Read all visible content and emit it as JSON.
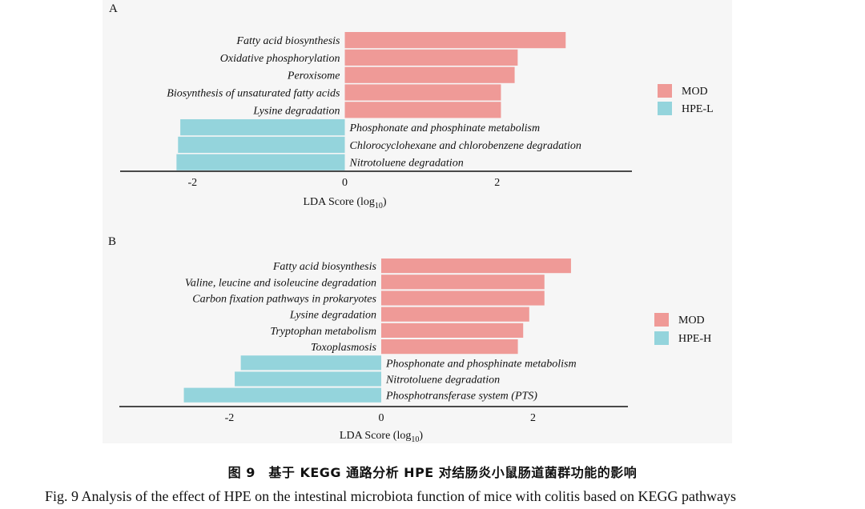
{
  "captions": {
    "cn": "图 9　基于 KEGG 通路分析 HPE 对结肠炎小鼠肠道菌群功能的影响",
    "en_fig": "Fig. 9",
    "en_text": "Analysis of the effect of HPE on the intestinal microbiota function of mice with colitis based on KEGG pathways"
  },
  "colors": {
    "pos": "#ef9a97",
    "neg": "#94d4dc",
    "panel_bg": "#f6f6f6",
    "axis": "#111111"
  },
  "chart_data": [
    {
      "type": "bar",
      "orientation": "horizontal",
      "panel": "A",
      "categories": [
        "Fatty acid biosynthesis",
        "Oxidative phosphorylation",
        "Peroxisome",
        "Biosynthesis of unsaturated fatty acids",
        "Lysine degradation",
        "Phosphonate and phosphinate metabolism",
        "Chlorocyclohexane and chlorobenzene degradation",
        "Nitrotoluene degradation"
      ],
      "values": [
        2.9,
        2.27,
        2.23,
        2.05,
        2.05,
        -2.16,
        -2.19,
        -2.21
      ],
      "groups": [
        "MOD",
        "MOD",
        "MOD",
        "MOD",
        "MOD",
        "HPE-L",
        "HPE-L",
        "HPE-L"
      ],
      "legend": [
        {
          "name": "MOD",
          "color": "#ef9a97"
        },
        {
          "name": "HPE-L",
          "color": "#94d4dc"
        }
      ],
      "legend_position": "right",
      "xlabel": "LDA Score (log",
      "xlabel_sub": "10",
      "xlabel_end": ")",
      "xlim": [
        -2.95,
        3.77
      ],
      "xticks": [
        -2,
        0,
        2
      ],
      "grid": false
    },
    {
      "type": "bar",
      "orientation": "horizontal",
      "panel": "B",
      "categories": [
        "Fatty acid biosynthesis",
        "Valine, leucine and isoleucine degradation",
        "Carbon fixation pathways in prokaryotes",
        "Lysine degradation",
        "Tryptophan metabolism",
        "Toxoplasmosis",
        "Phosphonate and phosphinate metabolism",
        "Nitrotoluene degradation",
        "Phosphotransferase system (PTS)"
      ],
      "values": [
        2.5,
        2.15,
        2.15,
        1.95,
        1.87,
        1.8,
        -1.85,
        -1.93,
        -2.6
      ],
      "groups": [
        "MOD",
        "MOD",
        "MOD",
        "MOD",
        "MOD",
        "MOD",
        "HPE-H",
        "HPE-H",
        "HPE-H"
      ],
      "legend": [
        {
          "name": "MOD",
          "color": "#ef9a97"
        },
        {
          "name": "HPE-H",
          "color": "#94d4dc"
        }
      ],
      "legend_position": "right",
      "xlabel": "LDA Score (log",
      "xlabel_sub": "10",
      "xlabel_end": ")",
      "xlim": [
        -3.45,
        3.25
      ],
      "xticks": [
        -2,
        0,
        2
      ],
      "grid": false
    }
  ]
}
